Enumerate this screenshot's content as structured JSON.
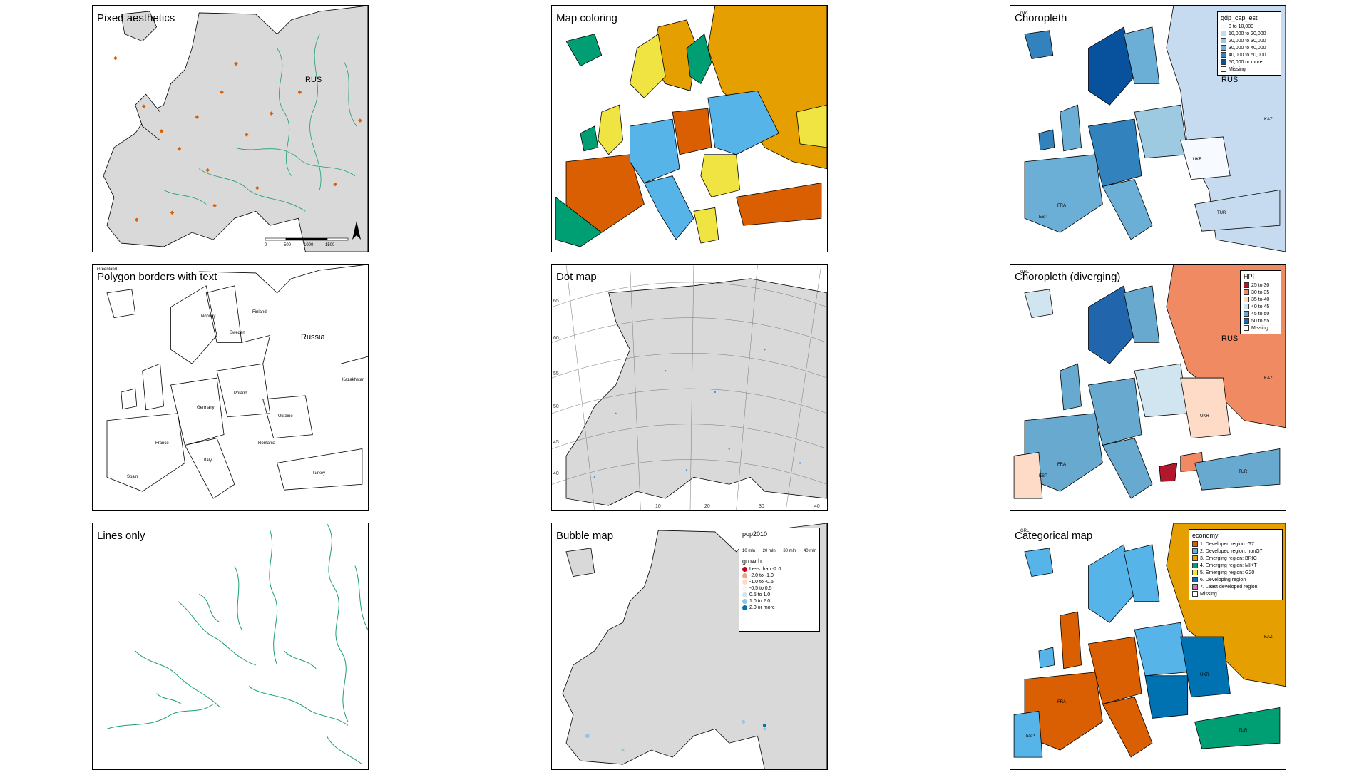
{
  "panels": [
    {
      "title": "Pixed aesthetics",
      "labels": [
        "RUS"
      ],
      "scale": [
        "0",
        "500",
        "1000",
        "1500"
      ]
    },
    {
      "title": "Map coloring"
    },
    {
      "title": "Choropleth",
      "labels": [
        "GRL",
        "RUS",
        "KAZ",
        "UKR",
        "FRA",
        "ESP",
        "TUR"
      ]
    },
    {
      "title": "Polygon borders with text",
      "labels": [
        "Greenland",
        "Russia",
        "Kazakhstan",
        "Ukraine",
        "France",
        "Spain",
        "Turkey",
        "Sweden",
        "Norway",
        "Finland",
        "Germany",
        "Poland",
        "Italy",
        "Romania"
      ]
    },
    {
      "title": "Dot map",
      "lat_ticks": [
        "65",
        "60",
        "55",
        "50",
        "45",
        "40"
      ],
      "lon_ticks": [
        "10",
        "20",
        "30",
        "40"
      ]
    },
    {
      "title": "Choropleth (diverging)",
      "labels": [
        "GRL",
        "RUS",
        "KAZ",
        "UKR",
        "FRA",
        "ESP",
        "TUR"
      ]
    },
    {
      "title": "Lines only"
    },
    {
      "title": "Bubble map"
    },
    {
      "title": "Categorical map",
      "labels": [
        "GRL",
        "KAZ",
        "UKR",
        "FRA",
        "ESP",
        "TUR"
      ]
    }
  ],
  "legends": {
    "gdp": {
      "title": "gdp_cap_est",
      "items": [
        {
          "label": "0 to 10,000",
          "color": "#f7fbff"
        },
        {
          "label": "10,000 to 20,000",
          "color": "#c6dbef"
        },
        {
          "label": "20,000 to 30,000",
          "color": "#9ecae1"
        },
        {
          "label": "30,000 to 40,000",
          "color": "#6baed6"
        },
        {
          "label": "40,000 to 50,000",
          "color": "#3182bd"
        },
        {
          "label": "50,000 or more",
          "color": "#08519c"
        },
        {
          "label": "Missing",
          "color": "#ffffff"
        }
      ]
    },
    "hpi": {
      "title": "HPI",
      "items": [
        {
          "label": "25 to 30",
          "color": "#b2182b"
        },
        {
          "label": "30 to 35",
          "color": "#ef8a62"
        },
        {
          "label": "35 to 40",
          "color": "#fddbc7"
        },
        {
          "label": "40 to 45",
          "color": "#d1e5f0"
        },
        {
          "label": "45 to 50",
          "color": "#67a9cf"
        },
        {
          "label": "50 to 55",
          "color": "#2166ac"
        },
        {
          "label": "Missing",
          "color": "#ffffff"
        }
      ]
    },
    "bubble": {
      "size_title": "pop2010",
      "sizes": [
        "10 mln",
        "20 mln",
        "30 mln",
        "40 mln"
      ],
      "color_title": "growth",
      "items": [
        {
          "label": "Less than -2.0",
          "color": "#ca0020"
        },
        {
          "label": "-2.0 to -1.0",
          "color": "#f4a582"
        },
        {
          "label": "-1.0 to -0.5",
          "color": "#fddbc7"
        },
        {
          "label": "-0.5 to 0.5",
          "color": "#f7f7f7"
        },
        {
          "label": "0.5 to 1.0",
          "color": "#d1e5f0"
        },
        {
          "label": "1.0 to 2.0",
          "color": "#92c5de"
        },
        {
          "label": "2.0 or more",
          "color": "#0571b0"
        }
      ]
    },
    "economy": {
      "title": "economy",
      "items": [
        {
          "label": "1. Developed region: G7",
          "color": "#d95f02"
        },
        {
          "label": "2. Developed region: nonG7",
          "color": "#56b4e9"
        },
        {
          "label": "3. Emerging region: BRIC",
          "color": "#e69f00"
        },
        {
          "label": "4. Emerging region: MIKT",
          "color": "#009e73"
        },
        {
          "label": "5. Emerging region: G20",
          "color": "#f0e442"
        },
        {
          "label": "6. Developing region",
          "color": "#0072b2"
        },
        {
          "label": "7. Least developed region",
          "color": "#cc79a7"
        },
        {
          "label": "Missing",
          "color": "#ffffff"
        }
      ]
    }
  }
}
